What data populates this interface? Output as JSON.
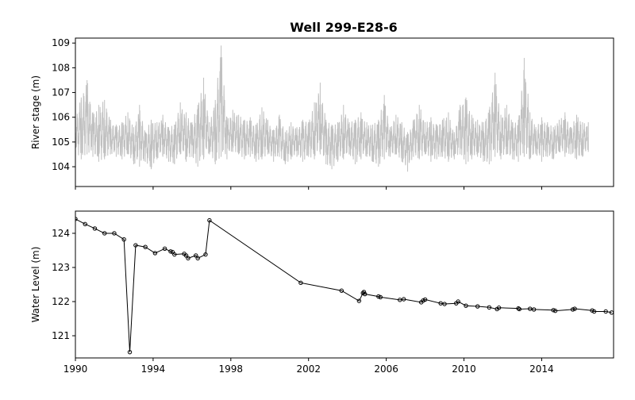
{
  "figure": {
    "title": "Well 299-E28-6"
  },
  "chart_data": [
    {
      "type": "line",
      "panel": "top",
      "title": "Well 299-E28-6",
      "xlabel": "",
      "ylabel": "River stage (m)",
      "xlim": [
        1990.0,
        2017.7
      ],
      "ylim": [
        103.2,
        109.2
      ],
      "yticks": [
        104,
        105,
        106,
        107,
        108,
        109
      ],
      "line_color": "#c0c0c0",
      "series": [
        {
          "x": [
            1990.0,
            1990.3,
            1990.6,
            1990.9,
            1991.2,
            1991.5,
            1991.8,
            1992.1,
            1992.4,
            1992.7,
            1993.0,
            1993.3,
            1993.6,
            1993.9,
            1994.2,
            1994.5,
            1994.8,
            1995.1,
            1995.4,
            1995.7,
            1996.0,
            1996.3,
            1996.6,
            1996.9,
            1997.2,
            1997.5,
            1997.8,
            1998.1,
            1998.4,
            1998.7,
            1999.0,
            1999.3,
            1999.6,
            1999.9,
            2000.2,
            2000.5,
            2000.8,
            2001.1,
            2001.4,
            2001.7,
            2002.0,
            2002.3,
            2002.6,
            2002.9,
            2003.2,
            2003.5,
            2003.8,
            2004.1,
            2004.4,
            2004.7,
            2005.0,
            2005.3,
            2005.6,
            2005.9,
            2006.2,
            2006.5,
            2006.8,
            2007.1,
            2007.4,
            2007.7,
            2008.0,
            2008.3,
            2008.6,
            2008.9,
            2009.2,
            2009.5,
            2009.8,
            2010.1,
            2010.4,
            2010.7,
            2011.0,
            2011.3,
            2011.6,
            2011.9,
            2012.2,
            2012.5,
            2012.8,
            2013.1,
            2013.4,
            2013.7,
            2014.0,
            2014.3,
            2014.6,
            2014.9,
            2015.2,
            2015.5,
            2015.8,
            2016.1,
            2016.4
          ],
          "max": [
            106.0,
            106.8,
            107.5,
            106.2,
            106.5,
            106.7,
            105.9,
            105.7,
            105.8,
            106.2,
            105.6,
            106.5,
            105.4,
            105.9,
            105.8,
            106.1,
            105.6,
            105.7,
            106.6,
            106.2,
            105.8,
            106.5,
            107.6,
            105.8,
            106.7,
            108.9,
            106.0,
            106.3,
            106.1,
            105.9,
            106.0,
            105.7,
            106.4,
            105.9,
            105.5,
            106.1,
            105.4,
            105.8,
            105.6,
            105.9,
            105.8,
            106.6,
            107.4,
            105.9,
            105.7,
            105.8,
            106.5,
            105.8,
            105.9,
            106.2,
            105.8,
            105.7,
            105.9,
            106.9,
            105.6,
            106.1,
            105.8,
            105.4,
            105.9,
            106.5,
            105.8,
            106.0,
            105.7,
            105.9,
            106.2,
            105.4,
            106.5,
            106.8,
            106.1,
            105.9,
            105.8,
            106.3,
            107.8,
            106.1,
            106.5,
            105.8,
            105.9,
            108.4,
            106.2,
            105.6,
            106.0,
            105.8,
            105.6,
            105.9,
            106.2,
            105.6,
            106.1,
            105.8,
            105.8
          ],
          "min": [
            104.6,
            104.3,
            104.5,
            104.4,
            104.2,
            104.3,
            104.5,
            104.4,
            104.3,
            104.5,
            104.1,
            104.0,
            104.2,
            103.9,
            104.3,
            104.4,
            104.2,
            104.1,
            104.5,
            104.2,
            104.4,
            104.0,
            104.3,
            104.5,
            104.1,
            104.4,
            104.3,
            104.6,
            104.5,
            104.3,
            104.4,
            104.2,
            104.3,
            104.5,
            104.2,
            104.4,
            104.1,
            104.3,
            104.4,
            104.2,
            104.4,
            104.3,
            104.5,
            104.1,
            103.9,
            104.2,
            104.3,
            104.5,
            104.1,
            104.3,
            104.4,
            104.2,
            104.0,
            104.3,
            104.4,
            104.5,
            104.2,
            103.8,
            104.4,
            104.3,
            104.5,
            104.2,
            104.3,
            104.4,
            104.2,
            104.3,
            104.5,
            104.1,
            104.3,
            104.4,
            104.2,
            104.1,
            104.4,
            104.3,
            104.5,
            104.3,
            104.2,
            104.4,
            104.3,
            104.5,
            104.2,
            104.4,
            104.3,
            104.6,
            104.4,
            104.5,
            104.3,
            104.4,
            104.6
          ]
        }
      ]
    },
    {
      "type": "line",
      "panel": "bottom",
      "xlabel": "",
      "ylabel": "Water Level (m)",
      "xlim": [
        1990.0,
        2017.7
      ],
      "ylim": [
        120.35,
        124.65
      ],
      "xticks": [
        1990,
        1994,
        1998,
        2002,
        2006,
        2010,
        2014
      ],
      "xticklabels": [
        "1990",
        "1994",
        "1998",
        "2002",
        "2006",
        "2010",
        "2014"
      ],
      "yticks": [
        121,
        122,
        123,
        124
      ],
      "line_color": "#000000",
      "marker": "circle",
      "series": [
        {
          "x": [
            1990.0,
            1990.5,
            1991.0,
            1991.5,
            1992.0,
            1992.5,
            1992.8,
            1993.1,
            1993.6,
            1994.1,
            1994.6,
            1994.9,
            1995.0,
            1995.1,
            1995.6,
            1995.7,
            1995.8,
            1996.2,
            1996.3,
            1996.7,
            1996.9,
            2001.6,
            2003.7,
            2004.6,
            2004.8,
            2004.85,
            2004.9,
            2005.6,
            2005.7,
            2006.7,
            2006.9,
            2007.8,
            2007.9,
            2008.0,
            2008.8,
            2009.0,
            2009.6,
            2009.7,
            2010.1,
            2010.7,
            2011.3,
            2011.7,
            2011.8,
            2012.8,
            2012.85,
            2013.4,
            2013.6,
            2014.6,
            2014.7,
            2015.6,
            2015.7,
            2016.6,
            2016.7,
            2017.3,
            2017.6
          ],
          "y": [
            124.42,
            124.27,
            124.14,
            124.0,
            124.0,
            123.82,
            120.52,
            123.65,
            123.6,
            123.42,
            123.55,
            123.47,
            123.45,
            123.38,
            123.4,
            123.35,
            123.27,
            123.35,
            123.27,
            123.38,
            124.38,
            122.55,
            122.32,
            122.02,
            122.25,
            122.28,
            122.22,
            122.15,
            122.13,
            122.05,
            122.07,
            121.98,
            122.03,
            122.06,
            121.95,
            121.93,
            121.95,
            122.0,
            121.88,
            121.86,
            121.83,
            121.78,
            121.82,
            121.8,
            121.78,
            121.79,
            121.77,
            121.75,
            121.73,
            121.77,
            121.79,
            121.74,
            121.71,
            121.71,
            121.68
          ]
        }
      ]
    }
  ]
}
